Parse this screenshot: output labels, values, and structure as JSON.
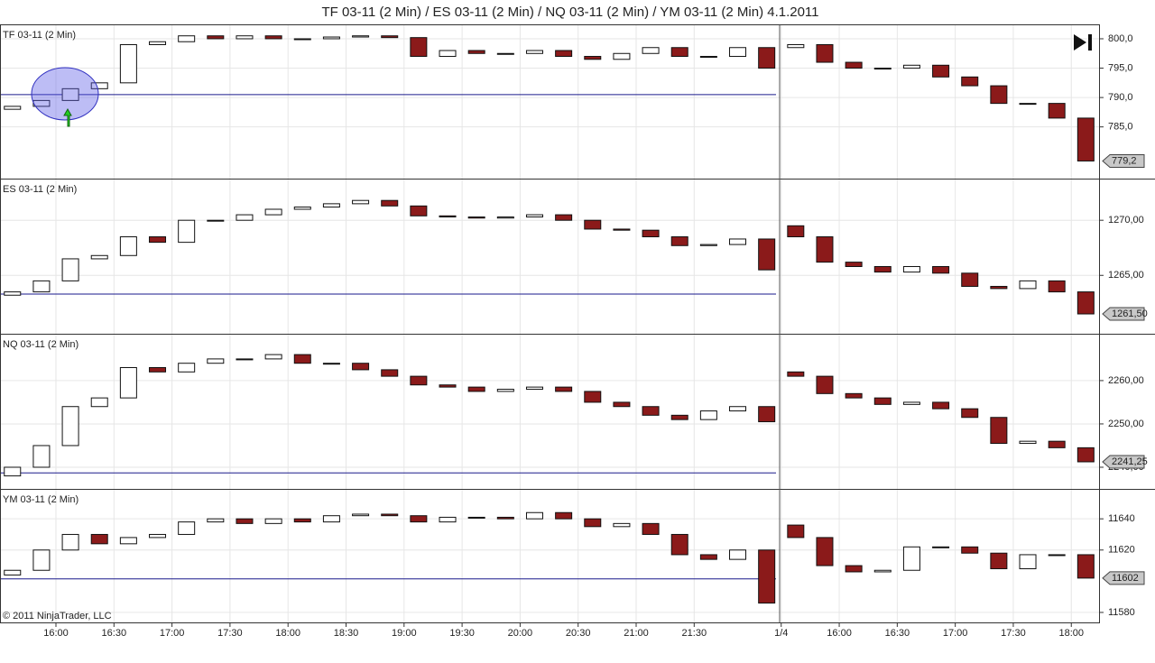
{
  "title": "TF 03-11 (2 Min) / ES 03-11 (2 Min) / NQ 03-11 (2 Min) / YM 03-11 (2 Min)  4.1.2011",
  "copyright": "© 2011 NinjaTrader, LLC",
  "chart_data": [
    {
      "type": "candlestick",
      "title": "TF 03-11 (2 Min)",
      "up_color": "#ffffff",
      "down_color": "#8b1a1a",
      "reference_line": 790.5,
      "reference_color": "#1a1a8c",
      "grid": true,
      "ylim": [
        776.2,
        802.3
      ],
      "yticks": [
        {
          "value": 785,
          "label": "785,0"
        },
        {
          "value": 790,
          "label": "790,0"
        },
        {
          "value": 795,
          "label": "795,0"
        },
        {
          "value": 800,
          "label": "800,0"
        }
      ],
      "open": [
        788,
        788.5,
        789.5,
        791.5,
        792.5,
        799,
        799.5,
        800.5,
        800,
        800.5,
        800,
        800,
        800.3,
        800.5,
        800.2,
        797,
        798,
        797.5,
        797.5,
        798,
        797,
        796.5,
        797.5,
        798.5,
        797,
        797,
        798.5,
        798.5,
        799,
        796,
        795,
        795,
        795.5,
        793.5,
        792,
        789,
        789,
        786.5
      ],
      "close": [
        788.5,
        789.5,
        791.5,
        792.5,
        799,
        799.5,
        800.5,
        800,
        800.5,
        800,
        800,
        800.3,
        800.5,
        800.2,
        797,
        798,
        797.5,
        797.5,
        798,
        797,
        796.5,
        797.5,
        798.5,
        797,
        797,
        798.5,
        795,
        799,
        796,
        795,
        795,
        795.5,
        793.5,
        792,
        789,
        789,
        786.5,
        779.2
      ],
      "value_labels": [
        null,
        null,
        null,
        null,
        null,
        null,
        null,
        null,
        null,
        null,
        null,
        null,
        null,
        null,
        null,
        null,
        null,
        null,
        null,
        null,
        null,
        null,
        null,
        null,
        null,
        null,
        null,
        null,
        null,
        null,
        null,
        null,
        null,
        null,
        null,
        null,
        null,
        "779,2"
      ]
    },
    {
      "type": "candlestick",
      "title": "ES 03-11 (2 Min)",
      "up_color": "#ffffff",
      "down_color": "#8b1a1a",
      "reference_line": 1263.3,
      "reference_color": "#1a1a8c",
      "grid": true,
      "ylim": [
        1259.7,
        1273.7
      ],
      "yticks": [
        {
          "value": 1265,
          "label": "1265,00"
        },
        {
          "value": 1270,
          "label": "1270,00"
        }
      ],
      "open": [
        1263.2,
        1263.5,
        1264.5,
        1266.5,
        1266.8,
        1268.5,
        1268,
        1270,
        1270,
        1270.5,
        1271,
        1271.2,
        1271.5,
        1271.8,
        1271.3,
        1270.4,
        1270.3,
        1270.2,
        1270.3,
        1270.5,
        1270,
        1269.2,
        1269.1,
        1268.5,
        1267.7,
        1267.8,
        1268.3,
        1269.5,
        1268.5,
        1266.2,
        1265.8,
        1265.3,
        1265.8,
        1265.2,
        1264,
        1263.8,
        1264.5,
        1263.5
      ],
      "close": [
        1263.5,
        1264.5,
        1266.5,
        1266.8,
        1268.5,
        1268,
        1270,
        1270,
        1270.5,
        1271,
        1271.2,
        1271.5,
        1271.8,
        1271.3,
        1270.4,
        1270.3,
        1270.2,
        1270.3,
        1270.5,
        1270,
        1269.2,
        1269.1,
        1268.5,
        1267.7,
        1267.8,
        1268.3,
        1265.5,
        1268.5,
        1266.2,
        1265.8,
        1265.3,
        1265.8,
        1265.2,
        1264,
        1263.8,
        1264.5,
        1263.5,
        1261.5
      ],
      "value_labels": [
        null,
        null,
        null,
        null,
        null,
        null,
        null,
        null,
        null,
        null,
        null,
        null,
        null,
        null,
        null,
        null,
        null,
        null,
        null,
        null,
        null,
        null,
        null,
        null,
        null,
        null,
        null,
        null,
        null,
        null,
        null,
        null,
        null,
        null,
        null,
        null,
        null,
        "1261,50"
      ]
    },
    {
      "type": "candlestick",
      "title": "NQ 03-11 (2 Min)",
      "up_color": "#ffffff",
      "down_color": "#8b1a1a",
      "reference_line": 2238.7,
      "reference_color": "#1a1a8c",
      "grid": true,
      "ylim": [
        2235.0,
        2270.6
      ],
      "yticks": [
        {
          "value": 2240,
          "label": "2240,00"
        },
        {
          "value": 2250,
          "label": "2250,00"
        },
        {
          "value": 2260,
          "label": "2260,00"
        }
      ],
      "open": [
        2238,
        2240,
        2245,
        2254,
        2256,
        2263,
        2262,
        2264,
        2265,
        2265,
        2266,
        2264,
        2264,
        2262.5,
        2261,
        2259,
        2258.5,
        2257.5,
        2258,
        2258.5,
        2257.5,
        2255,
        2254,
        2252,
        2251,
        2253,
        2254,
        2262,
        2261,
        2257,
        2256,
        2254.5,
        2255,
        2253.5,
        2251.5,
        2245.5,
        2246,
        2244.5
      ],
      "close": [
        2240,
        2245,
        2254,
        2256,
        2263,
        2262,
        2264,
        2265,
        2265,
        2266,
        2264,
        2264,
        2262.5,
        2261,
        2259,
        2258.5,
        2257.5,
        2258,
        2258.5,
        2257.5,
        2255,
        2254,
        2252,
        2251,
        2253,
        2254,
        2250.5,
        2261,
        2257,
        2256,
        2254.5,
        2255,
        2253.5,
        2251.5,
        2245.5,
        2246,
        2244.5,
        2241.25
      ],
      "value_labels": [
        null,
        null,
        null,
        null,
        null,
        null,
        null,
        null,
        null,
        null,
        null,
        null,
        null,
        null,
        null,
        null,
        null,
        null,
        null,
        null,
        null,
        null,
        null,
        null,
        null,
        null,
        null,
        null,
        null,
        null,
        null,
        null,
        null,
        null,
        null,
        null,
        null,
        "2241,25"
      ]
    },
    {
      "type": "candlestick",
      "title": "YM 03-11 (2 Min)",
      "up_color": "#ffffff",
      "down_color": "#8b1a1a",
      "reference_line": 11601.5,
      "reference_color": "#1a1a8c",
      "grid": true,
      "ylim": [
        11573.6,
        11658.6
      ],
      "yticks": [
        11580,
        11620,
        11640
      ],
      "categories": [
        null,
        null,
        "16:00",
        null,
        "16:30",
        null,
        "17:00",
        null,
        "17:30",
        null,
        "18:00",
        null,
        "18:30",
        null,
        "19:00",
        null,
        "19:30",
        null,
        "20:00",
        null,
        "20:30",
        null,
        "21:00",
        null,
        "21:30",
        null,
        null,
        "1/4",
        null,
        "16:00",
        null,
        "16:30",
        null,
        "17:00",
        null,
        "17:30",
        null,
        "18:00"
      ],
      "open": [
        11604,
        11607,
        11620,
        11630,
        11624,
        11628,
        11630,
        11638,
        11640,
        11637,
        11640,
        11638,
        11642,
        11643,
        11642,
        11638,
        11641,
        11641,
        11640,
        11644,
        11640,
        11635,
        11637,
        11630,
        11617,
        11614,
        11620,
        11636,
        11628,
        11610,
        11606,
        11607,
        11622,
        11622,
        11618,
        11608,
        11617,
        11617
      ],
      "close": [
        11607,
        11620,
        11630,
        11624,
        11628,
        11630,
        11638,
        11640,
        11637,
        11640,
        11638,
        11642,
        11643,
        11642,
        11638,
        11641,
        11641,
        11640,
        11644,
        11640,
        11635,
        11637,
        11630,
        11617,
        11614,
        11620,
        11586,
        11628,
        11610,
        11606,
        11607,
        11622,
        11622,
        11618,
        11608,
        11617,
        11617,
        11602
      ],
      "value_labels": [
        null,
        null,
        null,
        null,
        null,
        null,
        null,
        null,
        null,
        null,
        null,
        null,
        null,
        null,
        null,
        null,
        null,
        null,
        null,
        null,
        null,
        null,
        null,
        null,
        null,
        null,
        null,
        null,
        null,
        null,
        null,
        null,
        null,
        null,
        null,
        null,
        null,
        "11602"
      ]
    }
  ]
}
